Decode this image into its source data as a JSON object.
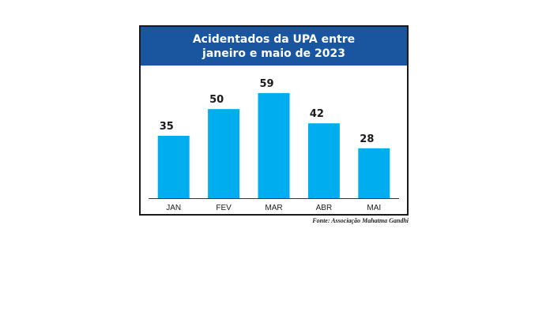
{
  "chart_data": {
    "type": "bar",
    "title_lines": [
      "Acidentados da UPA entre",
      "janeiro e maio de 2023"
    ],
    "categories": [
      "JAN",
      "FEV",
      "MAR",
      "ABR",
      "MAI"
    ],
    "values": [
      35,
      50,
      59,
      42,
      28
    ],
    "data_labels": [
      "35",
      "50",
      "59",
      "42",
      "28"
    ],
    "ylim": [
      0,
      70
    ],
    "grid": false,
    "legend": "none",
    "colors": {
      "bar": "#00aeef",
      "header_bg": "#1a55a0",
      "header_text": "#ffffff",
      "axis": "#333333",
      "label": "#1a1a1a"
    }
  },
  "source": "Fonte: Associação Mahatma Gandhi"
}
